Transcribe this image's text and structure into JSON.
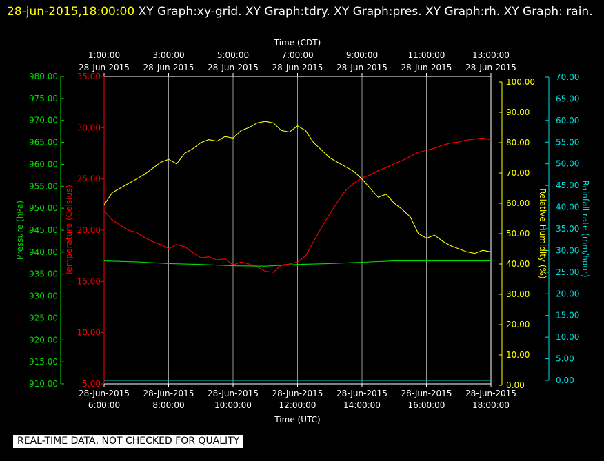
{
  "header": {
    "timestamp": "28-jun-2015,18:00:00",
    "title": "XY Graph:xy-grid.  XY Graph:tdry.  XY Graph:pres.  XY Graph:rh.  XY Graph: rain."
  },
  "notice": "REAL-TIME DATA, NOT CHECKED FOR QUALITY",
  "colors": {
    "pressure": "#00dd00",
    "temperature": "#ff0000",
    "humidity": "#ffff00",
    "rain": "#00dddd",
    "grid": "#ffffff",
    "text": "#ffffff"
  },
  "chart_data": {
    "type": "line",
    "x_bottom": {
      "label": "Time (UTC)",
      "ticks": [
        {
          "date": "28-Jun-2015",
          "time": "6:00:00"
        },
        {
          "date": "28-Jun-2015",
          "time": "8:00:00"
        },
        {
          "date": "28-Jun-2015",
          "time": "10:00:00"
        },
        {
          "date": "28-Jun-2015",
          "time": "12:00:00"
        },
        {
          "date": "28-Jun-2015",
          "time": "14:00:00"
        },
        {
          "date": "28-Jun-2015",
          "time": "16:00:00"
        },
        {
          "date": "28-Jun-2015",
          "time": "18:00:00"
        }
      ]
    },
    "x_top": {
      "label": "Time (CDT)",
      "ticks": [
        {
          "time": "1:00:00",
          "date": "28-Jun-2015"
        },
        {
          "time": "3:00:00",
          "date": "28-Jun-2015"
        },
        {
          "time": "5:00:00",
          "date": "28-Jun-2015"
        },
        {
          "time": "7:00:00",
          "date": "28-Jun-2015"
        },
        {
          "time": "9:00:00",
          "date": "28-Jun-2015"
        },
        {
          "time": "11:00:00",
          "date": "28-Jun-2015"
        },
        {
          "time": "13:00:00",
          "date": "28-Jun-2015"
        }
      ]
    },
    "x_range_utc_hours": [
      6,
      18
    ],
    "grid": true,
    "axes": {
      "pressure": {
        "label": "Pressure (hPa)",
        "range": [
          910,
          980
        ],
        "ticks": [
          "910.00",
          "915.00",
          "920.00",
          "925.00",
          "930.00",
          "935.00",
          "940.00",
          "945.00",
          "950.00",
          "955.00",
          "960.00",
          "965.00",
          "970.00",
          "975.00",
          "980.00"
        ]
      },
      "temperature": {
        "label": "Temperature (Celsius)",
        "range": [
          5,
          35
        ],
        "ticks": [
          "5.00",
          "10.00",
          "15.00",
          "20.00",
          "25.00",
          "30.00",
          "35.00"
        ]
      },
      "humidity": {
        "label": "Relative Humidity (%)",
        "range": [
          0,
          100
        ],
        "ticks": [
          "0.00",
          "10.00",
          "20.00",
          "30.00",
          "40.00",
          "50.00",
          "60.00",
          "70.00",
          "80.00",
          "90.00",
          "100.00"
        ]
      },
      "rain": {
        "label": "Rainfall rate (mm/hour)",
        "range": [
          0,
          70
        ],
        "ticks": [
          "0.00",
          "5.00",
          "10.00",
          "15.00",
          "20.00",
          "25.00",
          "30.00",
          "35.00",
          "40.00",
          "45.00",
          "50.00",
          "55.00",
          "60.00",
          "65.00",
          "70.00"
        ]
      }
    },
    "series": [
      {
        "name": "tdry",
        "axis": "temperature",
        "x": [
          6.0,
          6.25,
          6.5,
          6.75,
          7.0,
          7.25,
          7.5,
          7.75,
          8.0,
          8.25,
          8.5,
          8.75,
          9.0,
          9.25,
          9.5,
          9.75,
          10.0,
          10.25,
          10.5,
          10.75,
          11.0,
          11.25,
          11.5,
          11.75,
          12.0,
          12.25,
          12.5,
          12.75,
          13.0,
          13.25,
          13.5,
          13.75,
          14.0,
          14.25,
          14.5,
          14.75,
          15.0,
          15.25,
          15.5,
          15.75,
          16.0,
          16.25,
          16.5,
          16.75,
          17.0,
          17.25,
          17.5,
          17.75,
          18.0
        ],
        "values": [
          21.9,
          21.0,
          20.5,
          20.0,
          19.8,
          19.3,
          18.9,
          18.6,
          18.2,
          18.6,
          18.4,
          17.8,
          17.3,
          17.4,
          17.1,
          17.2,
          16.6,
          16.9,
          16.7,
          16.4,
          16.0,
          15.9,
          16.6,
          16.7,
          16.9,
          17.5,
          18.9,
          20.3,
          21.6,
          22.8,
          23.9,
          24.6,
          25.1,
          25.4,
          25.8,
          26.1,
          26.5,
          26.8,
          27.2,
          27.6,
          27.8,
          28.0,
          28.3,
          28.5,
          28.6,
          28.8,
          28.9,
          29.0,
          28.8
        ]
      },
      {
        "name": "pres",
        "axis": "pressure",
        "x": [
          6.0,
          7.0,
          8.0,
          9.0,
          10.0,
          11.0,
          12.0,
          13.0,
          14.0,
          15.0,
          16.0,
          17.0,
          18.0
        ],
        "values": [
          938.0,
          937.8,
          937.4,
          937.2,
          936.9,
          936.8,
          937.2,
          937.4,
          937.7,
          938.0,
          938.0,
          938.0,
          938.0
        ]
      },
      {
        "name": "rh",
        "axis": "humidity",
        "x": [
          6.0,
          6.25,
          6.5,
          6.75,
          7.0,
          7.25,
          7.5,
          7.75,
          8.0,
          8.25,
          8.5,
          8.75,
          9.0,
          9.25,
          9.5,
          9.75,
          10.0,
          10.25,
          10.5,
          10.75,
          11.0,
          11.25,
          11.5,
          11.75,
          12.0,
          12.25,
          12.5,
          12.75,
          13.0,
          13.25,
          13.5,
          13.75,
          14.0,
          14.25,
          14.5,
          14.75,
          15.0,
          15.25,
          15.5,
          15.75,
          16.0,
          16.25,
          16.5,
          16.75,
          17.0,
          17.25,
          17.5,
          17.75,
          18.0
        ],
        "values": [
          59.5,
          63.5,
          65.0,
          66.5,
          68.0,
          69.5,
          71.5,
          73.5,
          74.5,
          73.0,
          76.5,
          78.0,
          80.0,
          81.0,
          80.5,
          82.0,
          81.5,
          84.0,
          85.0,
          86.5,
          87.0,
          86.5,
          84.0,
          83.5,
          85.5,
          84.0,
          80.0,
          77.5,
          75.0,
          73.5,
          72.0,
          70.5,
          68.0,
          65.0,
          62.0,
          63.0,
          60.0,
          58.0,
          55.5,
          50.0,
          48.5,
          49.5,
          47.5,
          46.0,
          45.0,
          44.0,
          43.5,
          44.5,
          44.0
        ]
      },
      {
        "name": "rain",
        "axis": "rain",
        "x": [
          6.0,
          18.0
        ],
        "values": [
          0.0,
          0.0
        ]
      }
    ]
  }
}
